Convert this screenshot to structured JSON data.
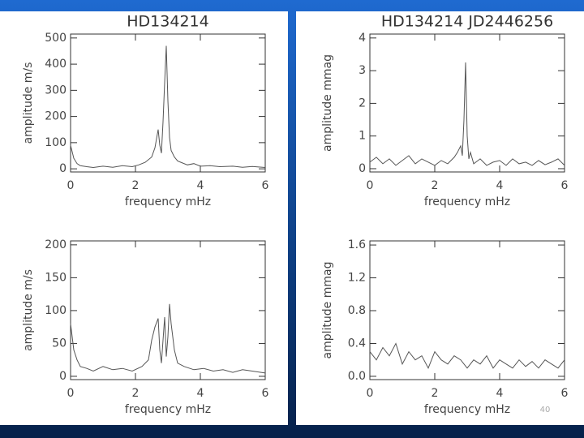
{
  "chart_data": [
    {
      "type": "line",
      "title": "HD134214",
      "ylabel": "amplitude m/s",
      "xlabel": "frequency mHz",
      "color": "#555555",
      "xlim": [
        0,
        6
      ],
      "xticks": [
        0,
        2,
        4,
        6
      ],
      "ylim": [
        -12,
        515
      ],
      "yticks": [
        0,
        100,
        200,
        300,
        400,
        500
      ],
      "x": [
        0,
        0.1,
        0.2,
        0.3,
        0.5,
        0.7,
        1,
        1.3,
        1.6,
        1.9,
        2.1,
        2.3,
        2.5,
        2.6,
        2.7,
        2.75,
        2.8,
        2.85,
        2.9,
        2.95,
        3.0,
        3.05,
        3.1,
        3.2,
        3.3,
        3.4,
        3.6,
        3.8,
        4,
        4.3,
        4.6,
        5,
        5.3,
        5.6,
        6
      ],
      "values": [
        90,
        40,
        20,
        12,
        8,
        5,
        10,
        6,
        12,
        8,
        15,
        25,
        45,
        80,
        150,
        90,
        60,
        180,
        330,
        470,
        260,
        120,
        70,
        45,
        30,
        25,
        15,
        20,
        10,
        12,
        8,
        10,
        6,
        9,
        5
      ]
    },
    {
      "type": "line",
      "title": "HD134214 JD2446256",
      "ylabel": "amplitude mmag",
      "xlabel": "frequency mHz",
      "color": "#555555",
      "xlim": [
        0,
        6
      ],
      "xticks": [
        0,
        2,
        4,
        6
      ],
      "ylim": [
        -0.1,
        4.12
      ],
      "yticks": [
        0,
        1,
        2,
        3,
        4
      ],
      "x": [
        0,
        0.2,
        0.4,
        0.6,
        0.8,
        1,
        1.2,
        1.4,
        1.6,
        1.8,
        2,
        2.2,
        2.4,
        2.6,
        2.7,
        2.8,
        2.85,
        2.9,
        2.95,
        3.0,
        3.05,
        3.1,
        3.2,
        3.4,
        3.6,
        3.8,
        4,
        4.2,
        4.4,
        4.6,
        4.8,
        5,
        5.2,
        5.4,
        5.6,
        5.8,
        6
      ],
      "values": [
        0.2,
        0.35,
        0.15,
        0.3,
        0.1,
        0.25,
        0.4,
        0.15,
        0.3,
        0.2,
        0.1,
        0.25,
        0.15,
        0.35,
        0.5,
        0.7,
        0.4,
        1.5,
        3.25,
        1.0,
        0.3,
        0.5,
        0.15,
        0.3,
        0.1,
        0.2,
        0.25,
        0.1,
        0.3,
        0.15,
        0.2,
        0.1,
        0.25,
        0.12,
        0.2,
        0.3,
        0.1
      ]
    },
    {
      "type": "line",
      "ylabel": "amplitude m/s",
      "xlabel": "frequency mHz",
      "color": "#555555",
      "xlim": [
        0,
        6
      ],
      "xticks": [
        0,
        2,
        4,
        6
      ],
      "ylim": [
        -5,
        206
      ],
      "yticks": [
        0,
        50,
        100,
        150,
        200
      ],
      "x": [
        0,
        0.1,
        0.2,
        0.3,
        0.5,
        0.7,
        1,
        1.3,
        1.6,
        1.9,
        2.2,
        2.4,
        2.5,
        2.6,
        2.7,
        2.75,
        2.8,
        2.9,
        2.95,
        3.0,
        3.05,
        3.1,
        3.2,
        3.3,
        3.5,
        3.8,
        4.1,
        4.4,
        4.7,
        5,
        5.3,
        5.6,
        6
      ],
      "values": [
        80,
        40,
        25,
        15,
        12,
        8,
        15,
        10,
        12,
        8,
        15,
        25,
        55,
        75,
        88,
        40,
        20,
        90,
        30,
        60,
        110,
        80,
        40,
        20,
        15,
        10,
        12,
        8,
        10,
        6,
        10,
        8,
        5
      ]
    },
    {
      "type": "line",
      "ylabel": "amplitude mmag",
      "xlabel": "frequency mHz",
      "color": "#555555",
      "xlim": [
        0,
        6
      ],
      "xticks": [
        0,
        2,
        4,
        6
      ],
      "ylim": [
        -0.04,
        1.65
      ],
      "yticks": [
        {
          "value": 0,
          "label": "0.0"
        },
        0.4,
        0.8,
        1.2,
        1.6
      ],
      "x": [
        0,
        0.2,
        0.4,
        0.6,
        0.8,
        1,
        1.2,
        1.4,
        1.6,
        1.8,
        2,
        2.2,
        2.4,
        2.6,
        2.8,
        3,
        3.2,
        3.4,
        3.6,
        3.8,
        4,
        4.2,
        4.4,
        4.6,
        4.8,
        5,
        5.2,
        5.4,
        5.6,
        5.8,
        6
      ],
      "values": [
        0.3,
        0.2,
        0.35,
        0.25,
        0.4,
        0.15,
        0.3,
        0.2,
        0.25,
        0.1,
        0.3,
        0.2,
        0.15,
        0.25,
        0.2,
        0.1,
        0.2,
        0.15,
        0.25,
        0.1,
        0.2,
        0.15,
        0.1,
        0.2,
        0.12,
        0.18,
        0.1,
        0.2,
        0.15,
        0.1,
        0.2
      ]
    }
  ],
  "slide_number": "40"
}
